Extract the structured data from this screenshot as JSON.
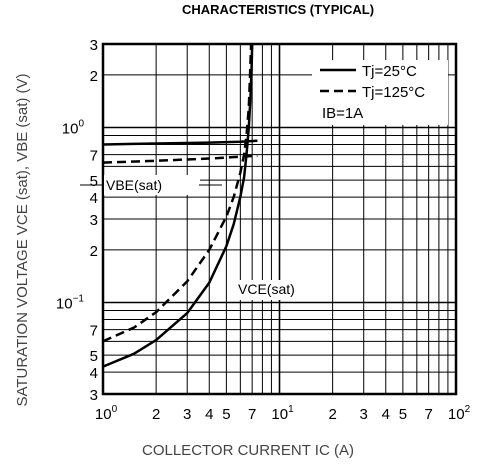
{
  "chart_data": {
    "type": "line",
    "title": "CHARACTERISTICS (TYPICAL)",
    "xlabel": "COLLECTOR CURRENT   IC (A)",
    "ylabel": "SATURATION VOLTAGE   VCE (sat), VBE (sat) (V)",
    "x_scale": "log",
    "y_scale": "log",
    "xlim": [
      1,
      100
    ],
    "ylim": [
      0.03,
      3
    ],
    "grid": true,
    "x_ticks": [
      {
        "value": 1,
        "base": "10",
        "exp": "0"
      },
      {
        "value": 2,
        "base": "2",
        "exp": ""
      },
      {
        "value": 3,
        "base": "3",
        "exp": ""
      },
      {
        "value": 4,
        "base": "4",
        "exp": ""
      },
      {
        "value": 5,
        "base": "5",
        "exp": ""
      },
      {
        "value": 7,
        "base": "7",
        "exp": ""
      },
      {
        "value": 10,
        "base": "10",
        "exp": "1"
      },
      {
        "value": 20,
        "base": "2",
        "exp": ""
      },
      {
        "value": 30,
        "base": "3",
        "exp": ""
      },
      {
        "value": 40,
        "base": "4",
        "exp": ""
      },
      {
        "value": 50,
        "base": "5",
        "exp": ""
      },
      {
        "value": 70,
        "base": "7",
        "exp": ""
      },
      {
        "value": 100,
        "base": "10",
        "exp": "2"
      }
    ],
    "y_ticks": [
      {
        "value": 3,
        "base": "3",
        "exp": ""
      },
      {
        "value": 2,
        "base": "2",
        "exp": ""
      },
      {
        "value": 1,
        "base": "10",
        "exp": "0"
      },
      {
        "value": 0.7,
        "base": "7",
        "exp": ""
      },
      {
        "value": 0.5,
        "base": "5",
        "exp": ""
      },
      {
        "value": 0.4,
        "base": "4",
        "exp": ""
      },
      {
        "value": 0.3,
        "base": "3",
        "exp": ""
      },
      {
        "value": 0.2,
        "base": "2",
        "exp": ""
      },
      {
        "value": 0.1,
        "base": "10",
        "exp": "−1"
      },
      {
        "value": 0.07,
        "base": "7",
        "exp": ""
      },
      {
        "value": 0.05,
        "base": "5",
        "exp": ""
      },
      {
        "value": 0.04,
        "base": "4",
        "exp": ""
      },
      {
        "value": 0.03,
        "base": "3",
        "exp": ""
      }
    ],
    "legend": {
      "position": "top-right",
      "entries": [
        {
          "style": "solid",
          "text": "Tj=25°C"
        },
        {
          "style": "dashed",
          "text": "Tj=125°C"
        }
      ],
      "condition": "IB=1A"
    },
    "annotations": {
      "vbe": "VBE(sat)",
      "vce": "VCE(sat)"
    },
    "series": [
      {
        "style": "solid",
        "curve": "VBE(sat)",
        "x": [
          1,
          2,
          4,
          6,
          7.5
        ],
        "y": [
          0.8,
          0.81,
          0.82,
          0.83,
          0.84
        ]
      },
      {
        "style": "dashed",
        "curve": "VBE(sat)",
        "x": [
          1,
          2,
          4,
          6,
          7.5
        ],
        "y": [
          0.63,
          0.645,
          0.665,
          0.68,
          0.69
        ]
      },
      {
        "style": "solid",
        "curve": "VCE(sat)",
        "x": [
          1,
          1.5,
          2,
          3,
          4,
          5,
          5.5,
          6,
          6.3,
          6.5,
          6.7,
          6.85,
          6.95,
          7.0
        ],
        "y": [
          0.043,
          0.051,
          0.061,
          0.087,
          0.13,
          0.21,
          0.28,
          0.4,
          0.52,
          0.7,
          1.0,
          1.5,
          2.2,
          3.0
        ]
      },
      {
        "style": "dashed",
        "curve": "VCE(sat)",
        "x": [
          1,
          1.5,
          2,
          3,
          4,
          5,
          5.5,
          6,
          6.3,
          6.5,
          6.7,
          6.8,
          6.9
        ],
        "y": [
          0.06,
          0.072,
          0.088,
          0.132,
          0.2,
          0.31,
          0.4,
          0.55,
          0.7,
          0.9,
          1.3,
          1.9,
          3.0
        ]
      }
    ]
  }
}
